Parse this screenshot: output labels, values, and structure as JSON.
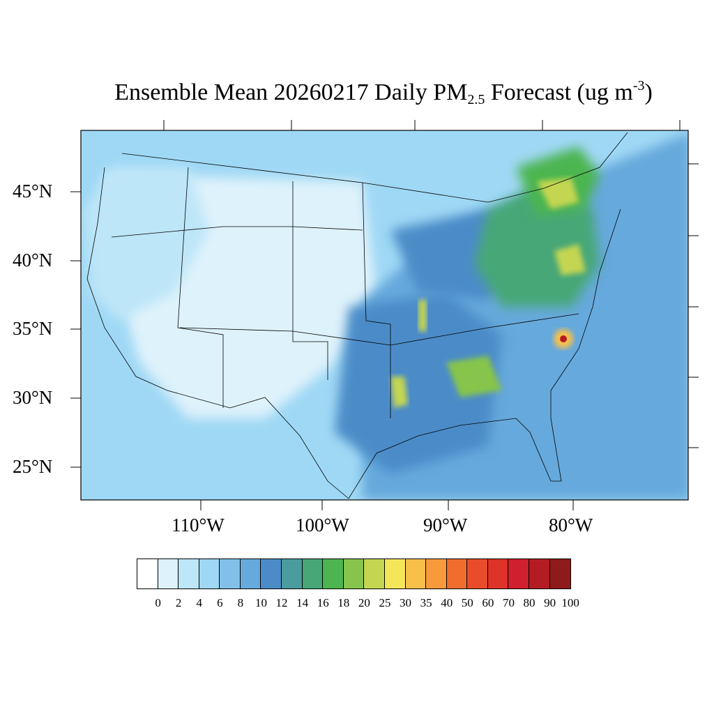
{
  "title": {
    "prefix": "Ensemble Mean 20260217 Daily PM",
    "subscript": "2.5",
    "middle": " Forecast (ug m",
    "superscript": "-3",
    "suffix": ")"
  },
  "map": {
    "projection": "Lambert conformal, continental US",
    "lat_labels": [
      "45°N",
      "40°N",
      "35°N",
      "30°N",
      "25°N"
    ],
    "lon_labels": [
      "110°W",
      "100°W",
      "90°W",
      "80°W"
    ],
    "background_level": "8–10 ug m-3 (medium blue)",
    "hotspots": [
      {
        "region": "Ohio Valley / Mid-Atlantic",
        "level": "16–25"
      },
      {
        "region": "Southern Ontario / Quebec",
        "level": "20–35"
      },
      {
        "region": "North Carolina",
        "level": "60–100"
      },
      {
        "region": "Lower Mississippi Valley",
        "level": "16–30"
      }
    ]
  },
  "colorbar": {
    "labels": [
      "0",
      "2",
      "4",
      "6",
      "8",
      "10",
      "12",
      "14",
      "16",
      "18",
      "20",
      "25",
      "30",
      "35",
      "40",
      "50",
      "60",
      "70",
      "80",
      "90",
      "100"
    ],
    "colors": [
      "#ffffff",
      "#def2fb",
      "#bde6f8",
      "#9fd8f5",
      "#82c0ea",
      "#66a9dc",
      "#4b8cc8",
      "#4a9c9e",
      "#47a777",
      "#4cb54f",
      "#86c44c",
      "#c4d651",
      "#f5e659",
      "#f8c04b",
      "#f69a3b",
      "#f06d2e",
      "#e84c2b",
      "#de3328",
      "#d01f2d",
      "#b41c24",
      "#8f1a1c"
    ]
  }
}
